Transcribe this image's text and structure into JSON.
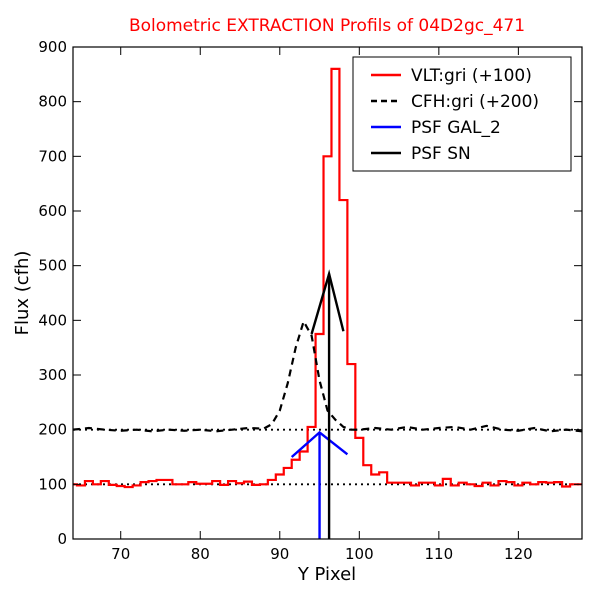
{
  "chart_data": {
    "type": "line",
    "title": "Bolometric EXTRACTION Profils of 04D2gc_471",
    "title_color": "#ff0000",
    "xlabel": "Y Pixel",
    "ylabel": "Flux (cfh)",
    "xlim": [
      64,
      128
    ],
    "ylim": [
      0,
      900
    ],
    "xticks": [
      70,
      80,
      90,
      100,
      110,
      120
    ],
    "yticks": [
      0,
      100,
      200,
      300,
      400,
      500,
      600,
      700,
      800,
      900
    ],
    "legend_position": "top-right",
    "reference_lines": [
      {
        "y": 100,
        "style": "dotted",
        "color": "#000000"
      },
      {
        "y": 200,
        "style": "dotted",
        "color": "#000000"
      }
    ],
    "series": [
      {
        "name": "VLT:gri (+100)",
        "kind": "step",
        "color": "#ff0000",
        "x": [
          64,
          65,
          66,
          67,
          68,
          69,
          70,
          71,
          72,
          73,
          74,
          75,
          76,
          77,
          78,
          79,
          80,
          81,
          82,
          83,
          84,
          85,
          86,
          87,
          88,
          89,
          90,
          91,
          92,
          93,
          94,
          95,
          96,
          97,
          98,
          99,
          100,
          101,
          102,
          103,
          104,
          105,
          106,
          107,
          108,
          109,
          110,
          111,
          112,
          113,
          114,
          115,
          116,
          117,
          118,
          119,
          120,
          121,
          122,
          123,
          124,
          125,
          126,
          127,
          128
        ],
        "y": [
          100,
          98,
          106,
          100,
          106,
          99,
          97,
          95,
          98,
          104,
          106,
          108,
          108,
          100,
          100,
          104,
          101,
          101,
          106,
          99,
          106,
          102,
          105,
          99,
          100,
          108,
          118,
          130,
          145,
          160,
          205,
          375,
          700,
          860,
          620,
          320,
          185,
          135,
          118,
          122,
          103,
          103,
          103,
          98,
          103,
          103,
          98,
          110,
          98,
          103,
          100,
          97,
          103,
          98,
          106,
          104,
          98,
          103,
          100,
          104,
          103,
          104,
          96,
          100,
          100
        ]
      },
      {
        "name": "CFH:gri (+200)",
        "kind": "line",
        "dash": "dashed",
        "color": "#000000",
        "x": [
          64,
          66,
          68,
          70,
          72,
          74,
          76,
          78,
          80,
          82,
          84,
          86,
          88,
          89,
          90,
          91,
          92,
          93,
          94,
          95,
          96,
          97,
          98,
          99,
          100,
          102,
          104,
          106,
          108,
          110,
          112,
          114,
          116,
          118,
          120,
          122,
          124,
          126,
          128
        ],
        "y": [
          200,
          203,
          200,
          198,
          200,
          197,
          200,
          198,
          200,
          197,
          200,
          203,
          202,
          210,
          235,
          285,
          350,
          398,
          372,
          290,
          235,
          218,
          205,
          200,
          200,
          203,
          200,
          205,
          200,
          203,
          205,
          200,
          207,
          200,
          198,
          203,
          197,
          200,
          197
        ]
      },
      {
        "name": "PSF GAL_2",
        "kind": "psf",
        "color": "#0000ff",
        "x": [
          91.5,
          95,
          98.5
        ],
        "y": [
          150,
          195,
          155
        ],
        "center_x": 95
      },
      {
        "name": "PSF SN",
        "kind": "psf",
        "color": "#000000",
        "x": [
          94,
          96.2,
          98
        ],
        "y": [
          375,
          485,
          380
        ],
        "center_x": 96.2
      }
    ]
  }
}
